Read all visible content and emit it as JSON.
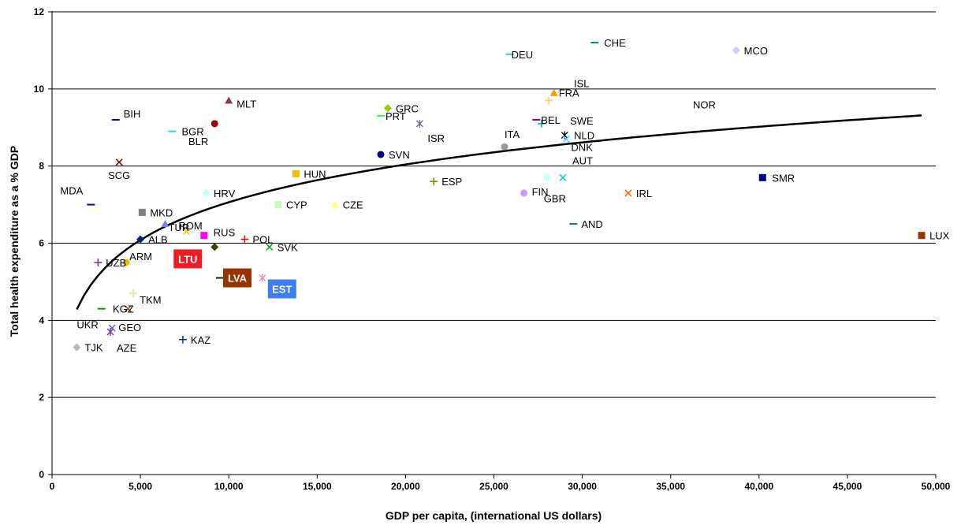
{
  "chart_data": {
    "type": "scatter",
    "title": "",
    "xlabel": "GDP per capita, (international US dollars)",
    "ylabel": "Total health expenditure as a % GDP",
    "xlim": [
      0,
      50000
    ],
    "ylim": [
      0,
      12
    ],
    "x_ticks": [
      0,
      5000,
      10000,
      15000,
      20000,
      25000,
      30000,
      35000,
      40000,
      45000,
      50000
    ],
    "x_tick_labels": [
      "0",
      "5,000",
      "10,000",
      "15,000",
      "20,000",
      "25,000",
      "30,000",
      "35,000",
      "40,000",
      "45,000",
      "50,000"
    ],
    "y_ticks": [
      0,
      2,
      4,
      6,
      8,
      10,
      12
    ],
    "y_tick_labels": [
      "0",
      "2",
      "4",
      "6",
      "8",
      "10",
      "12"
    ],
    "grid": "horizontal",
    "legend": "none",
    "trendline": {
      "type": "logarithmic",
      "x_range": [
        1400,
        49200
      ],
      "color": "#000000"
    },
    "points": [
      {
        "label": "TJK",
        "x": 1400,
        "y": 3.3,
        "marker": "diamond",
        "color": "#b8b8b8",
        "lx": 10,
        "ly": 0,
        "anchor": "start"
      },
      {
        "label": "AZE",
        "x": 3300,
        "y": 3.7,
        "marker": "star",
        "color": "#7030a0",
        "lx": 8,
        "ly": 20,
        "anchor": "start"
      },
      {
        "label": "GEO",
        "x": 3400,
        "y": 3.8,
        "marker": "x",
        "color": "#6060c0",
        "lx": 8,
        "ly": -1,
        "anchor": "start"
      },
      {
        "label": "UKR",
        "x": 2800,
        "y": 4.3,
        "marker": "dash",
        "color": "#00a000",
        "lx": -4,
        "ly": 20,
        "anchor": "end"
      },
      {
        "label": "KGZ",
        "x": 4300,
        "y": 4.3,
        "marker": "x",
        "color": "#c04040",
        "lx": -6,
        "ly": 0,
        "anchor": "middle"
      },
      {
        "label": "TKM",
        "x": 4600,
        "y": 4.7,
        "marker": "plus",
        "color": "#e0e0a0",
        "lx": 8,
        "ly": 8,
        "anchor": "start"
      },
      {
        "label": "KAZ",
        "x": 7400,
        "y": 3.5,
        "marker": "plus",
        "color": "#003f7f",
        "lx": 10,
        "ly": 0,
        "anchor": "start"
      },
      {
        "label": "UZB",
        "x": 2600,
        "y": 5.5,
        "marker": "plus",
        "color": "#7030a0",
        "lx": 10,
        "ly": 0,
        "anchor": "start"
      },
      {
        "label": "ARM",
        "x": 4200,
        "y": 5.5,
        "marker": "circle",
        "color": "#f0c000",
        "lx": 4,
        "ly": -8,
        "anchor": "start"
      },
      {
        "label": "MDA",
        "x": 2200,
        "y": 7.0,
        "marker": "dash",
        "color": "#0000cc",
        "lx": -10,
        "ly": -18,
        "anchor": "end"
      },
      {
        "label": "MKD",
        "x": 5100,
        "y": 6.8,
        "marker": "square",
        "color": "#808080",
        "lx": 10,
        "ly": 0,
        "anchor": "start"
      },
      {
        "label": "ALB",
        "x": 5000,
        "y": 6.1,
        "marker": "diamond",
        "color": "#001f7f",
        "lx": 10,
        "ly": 0,
        "anchor": "start"
      },
      {
        "label": "TUR",
        "x": 6400,
        "y": 6.5,
        "marker": "triangle",
        "color": "#8080e0",
        "lx": 4,
        "ly": 4,
        "anchor": "start"
      },
      {
        "label": "ROM",
        "x": 7600,
        "y": 6.3,
        "marker": "x",
        "color": "#f0d000",
        "lx": -10,
        "ly": -8,
        "anchor": "start"
      },
      {
        "label": "RUS",
        "x": 8600,
        "y": 6.2,
        "marker": "square",
        "color": "#ff00ff",
        "lx": 12,
        "ly": -4,
        "anchor": "start"
      },
      {
        "label": "LTU",
        "x": 9200,
        "y": 5.9,
        "marker": "diamond",
        "color": "#404000",
        "lx": -34,
        "ly": 15,
        "anchor": "middle",
        "box": "#ee1c25"
      },
      {
        "label": "LVA",
        "x": 9500,
        "y": 5.1,
        "marker": "dash",
        "color": "#003000",
        "lx": 22,
        "ly": 0,
        "anchor": "middle",
        "box": "#993300"
      },
      {
        "label": "EST",
        "x": 11900,
        "y": 5.1,
        "marker": "star",
        "color": "#f080c0",
        "lx": 25,
        "ly": 14,
        "anchor": "middle",
        "box": "#3d7ef0"
      },
      {
        "label": "SVK",
        "x": 12300,
        "y": 5.9,
        "marker": "x",
        "color": "#00a000",
        "lx": 10,
        "ly": 0,
        "anchor": "start"
      },
      {
        "label": "POL",
        "x": 10900,
        "y": 6.1,
        "marker": "plus",
        "color": "#ff0000",
        "lx": 10,
        "ly": 0,
        "anchor": "start"
      },
      {
        "label": "HRV",
        "x": 8700,
        "y": 7.3,
        "marker": "diamond",
        "color": "#c0ffff",
        "lx": 10,
        "ly": 0,
        "anchor": "start"
      },
      {
        "label": "CYP",
        "x": 12800,
        "y": 7.0,
        "marker": "square",
        "color": "#c0ffc0",
        "lx": 10,
        "ly": 0,
        "anchor": "start"
      },
      {
        "label": "CZE",
        "x": 16000,
        "y": 7.0,
        "marker": "triangle",
        "color": "#ffff80",
        "lx": 10,
        "ly": 0,
        "anchor": "start"
      },
      {
        "label": "HUN",
        "x": 13800,
        "y": 7.8,
        "marker": "square",
        "color": "#f0c000",
        "lx": 10,
        "ly": 0,
        "anchor": "start"
      },
      {
        "label": "SCG",
        "x": 3800,
        "y": 8.1,
        "marker": "x",
        "color": "#800000",
        "lx": 0,
        "ly": 16,
        "anchor": "middle"
      },
      {
        "label": "BIH",
        "x": 3600,
        "y": 9.2,
        "marker": "dash",
        "color": "#0000cc",
        "lx": 10,
        "ly": -8,
        "anchor": "start"
      },
      {
        "label": "BGR",
        "x": 6800,
        "y": 8.9,
        "marker": "dash",
        "color": "#33ccff",
        "lx": 12,
        "ly": 0,
        "anchor": "start"
      },
      {
        "label": "BLR",
        "x": 9200,
        "y": 9.1,
        "marker": "circle",
        "color": "#a00000",
        "lx": -8,
        "ly": 22,
        "anchor": "end"
      },
      {
        "label": "MLT",
        "x": 10000,
        "y": 9.7,
        "marker": "triangle",
        "color": "#993366",
        "lx": 10,
        "ly": 4,
        "anchor": "start"
      },
      {
        "label": "SVN",
        "x": 18600,
        "y": 8.3,
        "marker": "circle",
        "color": "#000080",
        "lx": 10,
        "ly": 0,
        "anchor": "start"
      },
      {
        "label": "PRT",
        "x": 18600,
        "y": 9.3,
        "marker": "dash",
        "color": "#33ff33",
        "lx": 6,
        "ly": 0,
        "anchor": "start"
      },
      {
        "label": "GRC",
        "x": 19000,
        "y": 9.5,
        "marker": "diamond",
        "color": "#99cc00",
        "lx": 10,
        "ly": 0,
        "anchor": "start"
      },
      {
        "label": "ISR",
        "x": 20800,
        "y": 9.1,
        "marker": "star",
        "color": "#6666aa",
        "lx": 10,
        "ly": 18,
        "anchor": "start"
      },
      {
        "label": "ESP",
        "x": 21600,
        "y": 7.6,
        "marker": "plus",
        "color": "#808000",
        "lx": 10,
        "ly": 0,
        "anchor": "start"
      },
      {
        "label": "DEU",
        "x": 25900,
        "y": 10.9,
        "marker": "dash",
        "color": "#33cccc",
        "lx": 2,
        "ly": 0,
        "anchor": "start"
      },
      {
        "label": "ITA",
        "x": 25600,
        "y": 8.5,
        "marker": "circle",
        "color": "#999999",
        "lx": 0,
        "ly": -16,
        "anchor": "start"
      },
      {
        "label": "FIN",
        "x": 26700,
        "y": 7.3,
        "marker": "circle",
        "color": "#cc99ff",
        "lx": 10,
        "ly": -2,
        "anchor": "start"
      },
      {
        "label": "GBR",
        "x": 28000,
        "y": 7.7,
        "marker": "circle",
        "color": "#ccffff",
        "lx": -4,
        "ly": 26,
        "anchor": "start"
      },
      {
        "label": "AUT",
        "x": 28900,
        "y": 7.7,
        "marker": "x",
        "color": "#00cccc",
        "lx": 12,
        "ly": -22,
        "anchor": "start"
      },
      {
        "label": "ISL",
        "x": 28100,
        "y": 9.7,
        "marker": "plus",
        "color": "#ffcc66",
        "lx": 32,
        "ly": -22,
        "anchor": "start"
      },
      {
        "label": "FRA",
        "x": 28400,
        "y": 9.9,
        "marker": "triangle",
        "color": "#ff9900",
        "lx": 6,
        "ly": 0,
        "anchor": "start"
      },
      {
        "label": "BEL",
        "x": 27400,
        "y": 9.2,
        "marker": "dash",
        "color": "#990066",
        "lx": 6,
        "ly": 0,
        "anchor": "start"
      },
      {
        "label": "SWE",
        "x": 27700,
        "y": 9.1,
        "marker": "plus",
        "color": "#00b0b0",
        "lx": 36,
        "ly": -4,
        "anchor": "start"
      },
      {
        "label": "NLD",
        "x": 29000,
        "y": 8.8,
        "marker": "star",
        "color": "#000000",
        "lx": 12,
        "ly": 0,
        "anchor": "start"
      },
      {
        "label": "DNK",
        "x": 29100,
        "y": 8.7,
        "marker": "x",
        "color": "#66ccff",
        "lx": 6,
        "ly": 10,
        "anchor": "start"
      },
      {
        "label": "AND",
        "x": 29500,
        "y": 6.5,
        "marker": "dash",
        "color": "#0070c0",
        "lx": 10,
        "ly": 0,
        "anchor": "start"
      },
      {
        "label": "IRL",
        "x": 32600,
        "y": 7.3,
        "marker": "x",
        "color": "#ff6600",
        "lx": 10,
        "ly": 0,
        "anchor": "start"
      },
      {
        "label": "CHE",
        "x": 30700,
        "y": 11.2,
        "marker": "dash",
        "color": "#008080",
        "lx": 12,
        "ly": 0,
        "anchor": "start"
      },
      {
        "label": "NOR",
        "x": 37800,
        "y": 9.15,
        "marker": "dash",
        "color": "#ffffff",
        "lx": -20,
        "ly": -22,
        "anchor": "middle"
      },
      {
        "label": "MCO",
        "x": 38700,
        "y": 11.0,
        "marker": "diamond",
        "color": "#ccccff",
        "lx": 10,
        "ly": 0,
        "anchor": "start"
      },
      {
        "label": "SMR",
        "x": 40200,
        "y": 7.7,
        "marker": "square",
        "color": "#000080",
        "lx": 12,
        "ly": 0,
        "anchor": "start"
      },
      {
        "label": "LUX",
        "x": 49200,
        "y": 6.2,
        "marker": "square",
        "color": "#993300",
        "lx": 10,
        "ly": 0,
        "anchor": "start"
      }
    ]
  }
}
